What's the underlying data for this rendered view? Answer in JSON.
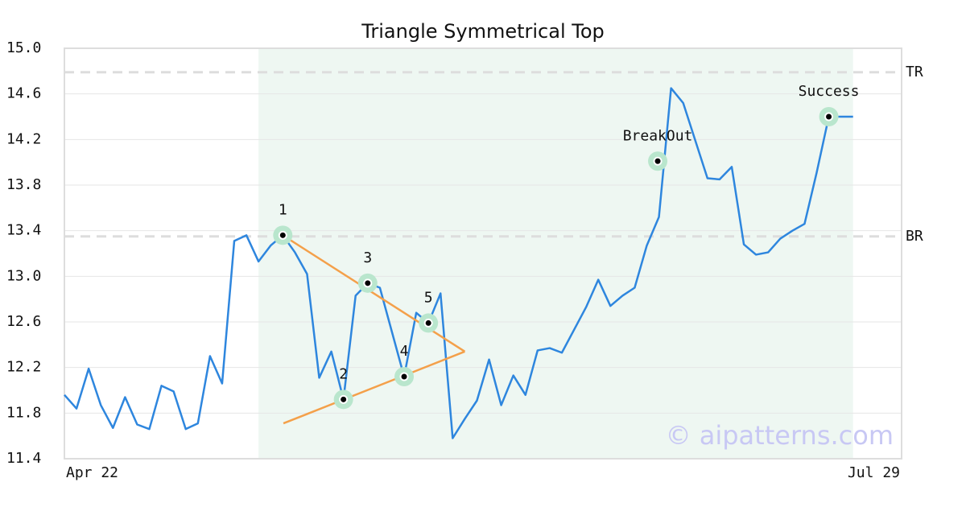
{
  "chart_data": {
    "type": "line",
    "title": "Triangle Symmetrical Top",
    "x": [
      0,
      1,
      2,
      3,
      4,
      5,
      6,
      7,
      8,
      9,
      10,
      11,
      12,
      13,
      14,
      15,
      16,
      17,
      18,
      19,
      20,
      21,
      22,
      23,
      24,
      25,
      26,
      27,
      28,
      29,
      30,
      31,
      32,
      33,
      34,
      35,
      36,
      37,
      38,
      39,
      40,
      41,
      42,
      43,
      44,
      45,
      46,
      47,
      48,
      49,
      50,
      51,
      52,
      53,
      54,
      55,
      56,
      57,
      58,
      59,
      60,
      61,
      62,
      63,
      64,
      65
    ],
    "values": [
      11.96,
      11.84,
      12.19,
      11.87,
      11.67,
      11.94,
      11.7,
      11.66,
      12.04,
      11.99,
      11.66,
      11.71,
      12.3,
      12.06,
      13.31,
      13.36,
      13.13,
      13.27,
      13.36,
      13.21,
      13.02,
      12.11,
      12.34,
      11.92,
      12.83,
      12.94,
      12.9,
      12.51,
      12.12,
      12.68,
      12.59,
      12.85,
      11.58,
      11.75,
      11.91,
      12.27,
      11.87,
      12.13,
      11.96,
      12.35,
      12.37,
      12.33,
      12.53,
      12.73,
      12.97,
      12.74,
      12.83,
      12.9,
      13.27,
      13.52,
      14.65,
      14.52,
      14.19,
      13.86,
      13.85,
      13.96,
      13.28,
      13.19,
      13.21,
      13.33,
      13.4,
      13.46,
      13.91,
      14.4,
      14.4,
      14.4
    ],
    "color": "#2e86de",
    "xlim": [
      0,
      69
    ],
    "xticks": [
      {
        "value": 0,
        "label": "Apr 22"
      },
      {
        "value": 69,
        "label": "Jul 29"
      }
    ],
    "ylim": [
      11.4,
      15.0
    ],
    "yticks": [
      11.4,
      11.8,
      12.2,
      12.6,
      {
        "value": 13.0,
        "label": "13.0"
      },
      13.4,
      13.8,
      14.2,
      14.6,
      {
        "value": 15.0,
        "label": "15.0"
      }
    ],
    "grid": true,
    "shaded_range": [
      16,
      65
    ],
    "hlines": [
      {
        "label": "TR",
        "value": 14.79
      },
      {
        "label": "BR",
        "value": 13.35
      }
    ],
    "triangle_color": "#f4a04a",
    "triangle": [
      {
        "x": [
          18,
          33
        ],
        "y": [
          13.36,
          12.34
        ]
      },
      {
        "x": [
          18.05,
          33
        ],
        "y": [
          11.71,
          12.34
        ]
      }
    ],
    "points": [
      {
        "label": "1",
        "x": 18,
        "y": 13.36
      },
      {
        "label": "2",
        "x": 23,
        "y": 11.92
      },
      {
        "label": "3",
        "x": 25,
        "y": 12.94
      },
      {
        "label": "4",
        "x": 28,
        "y": 12.12
      },
      {
        "label": "5",
        "x": 30,
        "y": 12.59
      },
      {
        "label": "BreakOut",
        "x": 48.9,
        "y": 14.01
      },
      {
        "label": "Success",
        "x": 63,
        "y": 14.4
      }
    ],
    "watermark": "© aipatterns.com"
  }
}
